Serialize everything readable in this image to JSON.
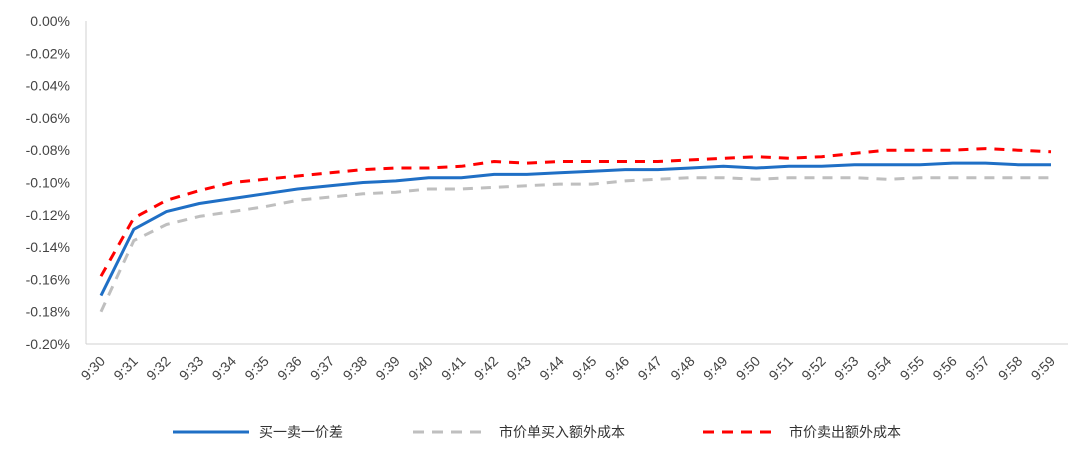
{
  "chart_data": {
    "type": "line",
    "x": [
      "9:30",
      "9:31",
      "9:32",
      "9:33",
      "9:34",
      "9:35",
      "9:36",
      "9:37",
      "9:38",
      "9:39",
      "9:40",
      "9:41",
      "9:42",
      "9:43",
      "9:44",
      "9:45",
      "9:46",
      "9:47",
      "9:48",
      "9:49",
      "9:50",
      "9:51",
      "9:52",
      "9:53",
      "9:54",
      "9:55",
      "9:56",
      "9:57",
      "9:58",
      "9:59"
    ],
    "y_tick_labels": [
      "0.00%",
      "-0.02%",
      "-0.04%",
      "-0.06%",
      "-0.08%",
      "-0.10%",
      "-0.12%",
      "-0.14%",
      "-0.16%",
      "-0.18%",
      "-0.20%"
    ],
    "ylim": [
      -0.2,
      0.0
    ],
    "grid": false,
    "legend_position": "bottom",
    "series": [
      {
        "name": "买一卖一价差",
        "color": "#1f6fc5",
        "style": "solid",
        "values": [
          -0.17,
          -0.129,
          -0.118,
          -0.113,
          -0.11,
          -0.107,
          -0.104,
          -0.102,
          -0.1,
          -0.099,
          -0.097,
          -0.097,
          -0.095,
          -0.095,
          -0.094,
          -0.093,
          -0.092,
          -0.092,
          -0.091,
          -0.09,
          -0.091,
          -0.09,
          -0.09,
          -0.089,
          -0.089,
          -0.089,
          -0.088,
          -0.088,
          -0.089,
          -0.089
        ]
      },
      {
        "name": "市价单买入额外成本",
        "color": "#bfbfbf",
        "style": "dashed",
        "values": [
          -0.18,
          -0.136,
          -0.126,
          -0.121,
          -0.118,
          -0.115,
          -0.111,
          -0.109,
          -0.107,
          -0.106,
          -0.104,
          -0.104,
          -0.103,
          -0.102,
          -0.101,
          -0.101,
          -0.099,
          -0.098,
          -0.097,
          -0.097,
          -0.098,
          -0.097,
          -0.097,
          -0.097,
          -0.098,
          -0.097,
          -0.097,
          -0.097,
          -0.097,
          -0.097
        ]
      },
      {
        "name": "市价卖出额外成本",
        "color": "#ff0000",
        "style": "dashed",
        "values": [
          -0.158,
          -0.122,
          -0.111,
          -0.105,
          -0.1,
          -0.098,
          -0.096,
          -0.094,
          -0.092,
          -0.091,
          -0.091,
          -0.09,
          -0.087,
          -0.088,
          -0.087,
          -0.087,
          -0.087,
          -0.087,
          -0.086,
          -0.085,
          -0.084,
          -0.085,
          -0.084,
          -0.082,
          -0.08,
          -0.08,
          -0.08,
          -0.079,
          -0.08,
          -0.081
        ]
      }
    ]
  }
}
